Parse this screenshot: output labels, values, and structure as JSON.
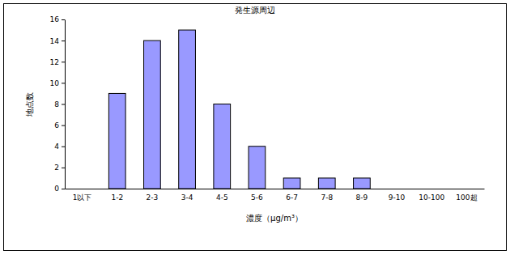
{
  "chart_data": {
    "type": "bar",
    "title": "発生源周辺",
    "x_label": "濃度（μg/m³）",
    "y_label": "地点数",
    "categories": [
      "1以下",
      "1-2",
      "2-3",
      "3-4",
      "4-5",
      "5-6",
      "6-7",
      "7-8",
      "8-9",
      "9-10",
      "10-100",
      "100超"
    ],
    "values": [
      0,
      9,
      14,
      15,
      8,
      4,
      1,
      1,
      1,
      0,
      0,
      0
    ],
    "color": "#9999ff",
    "ylim": [
      0,
      16
    ],
    "yticks": [
      0,
      2,
      4,
      6,
      8,
      10,
      12,
      14,
      16
    ],
    "grid": false
  }
}
